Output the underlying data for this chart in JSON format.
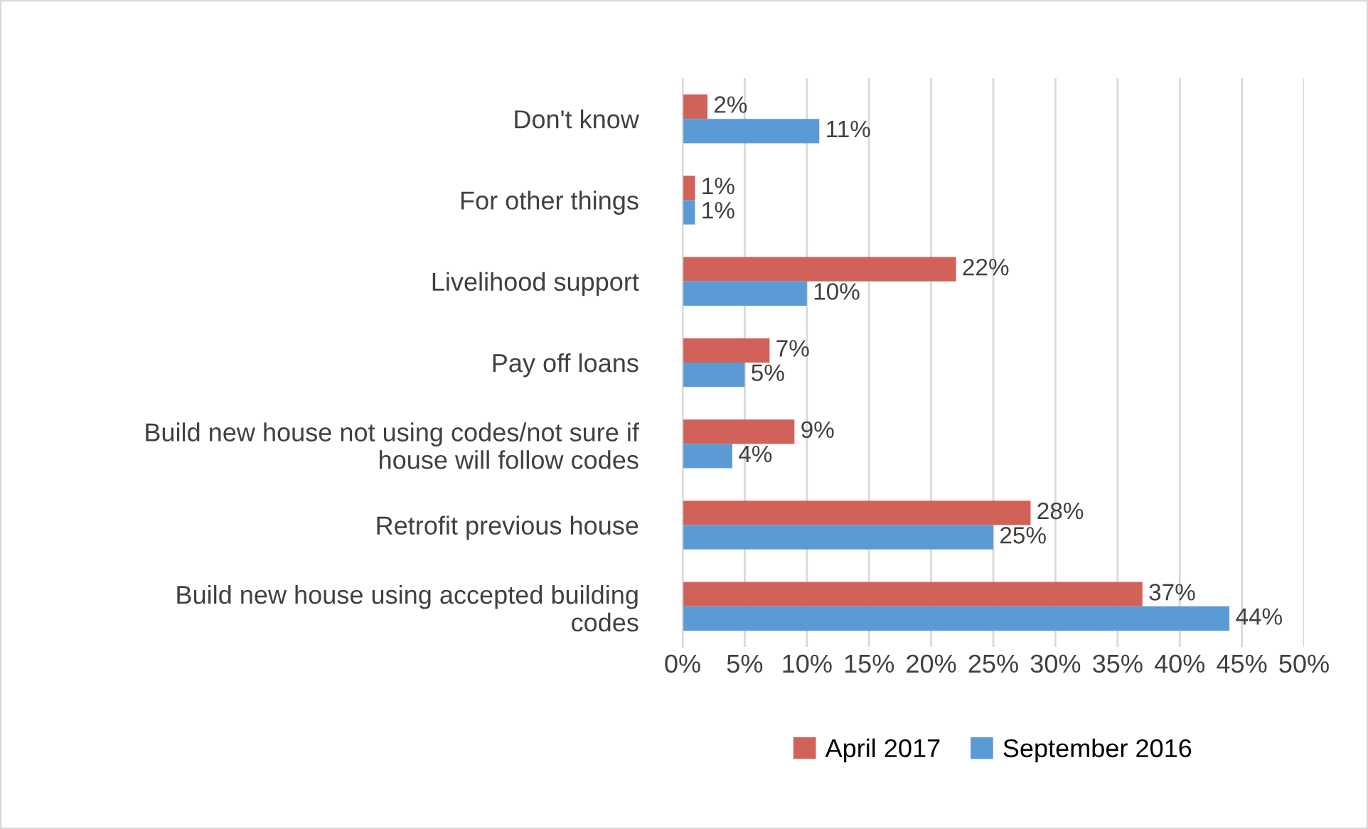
{
  "chart_data": {
    "type": "bar",
    "orientation": "horizontal",
    "categories": [
      "Don't know",
      "For other things",
      "Livelihood support",
      "Pay off loans",
      "Build new house not using codes/not sure if\nhouse will follow codes",
      "Retrofit previous house",
      "Build new house using accepted building\ncodes"
    ],
    "series": [
      {
        "name": "April 2017",
        "color": "#d0625a",
        "values": [
          2,
          1,
          22,
          7,
          9,
          28,
          37
        ],
        "value_labels": [
          "2%",
          "1%",
          "22%",
          "7%",
          "9%",
          "28%",
          "37%"
        ]
      },
      {
        "name": "September 2016",
        "color": "#5b9bd5",
        "values": [
          11,
          1,
          10,
          5,
          4,
          25,
          44
        ],
        "value_labels": [
          "11%",
          "1%",
          "10%",
          "5%",
          "4%",
          "25%",
          "44%"
        ]
      }
    ],
    "xlim": [
      0,
      50
    ],
    "xticks": [
      {
        "value": 0,
        "label": "0%"
      },
      {
        "value": 5,
        "label": "5%"
      },
      {
        "value": 10,
        "label": "10%"
      },
      {
        "value": 15,
        "label": "15%"
      },
      {
        "value": 20,
        "label": "20%"
      },
      {
        "value": 25,
        "label": "25%"
      },
      {
        "value": 30,
        "label": "30%"
      },
      {
        "value": 35,
        "label": "35%"
      },
      {
        "value": 40,
        "label": "40%"
      },
      {
        "value": 45,
        "label": "45%"
      },
      {
        "value": 50,
        "label": "50%"
      }
    ],
    "grid": "x",
    "legend": "bottom"
  }
}
